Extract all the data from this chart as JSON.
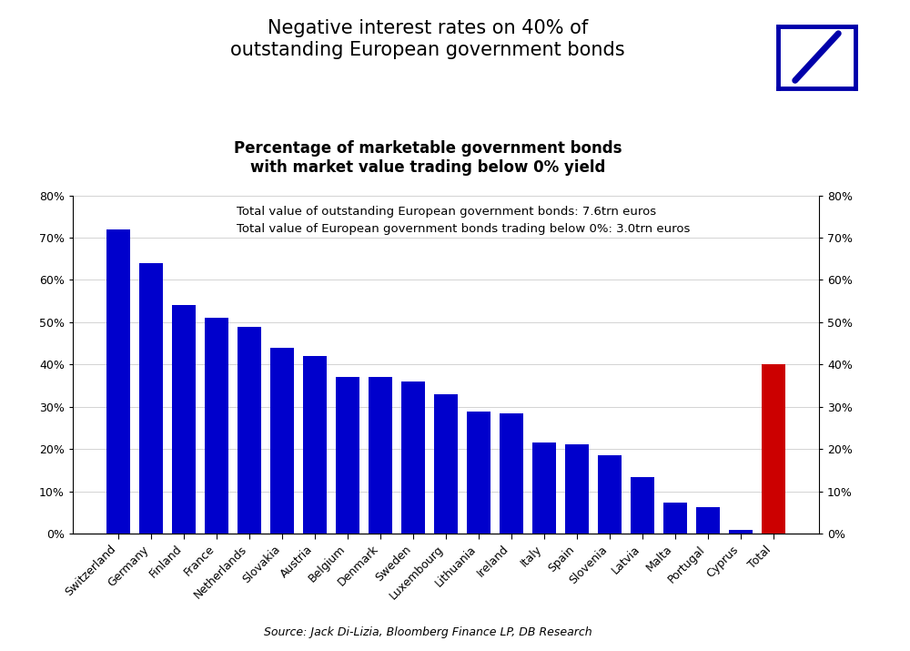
{
  "title_main": "Negative interest rates on 40% of\noutstanding European government bonds",
  "title_sub": "Percentage of marketable government bonds\nwith market value trading below 0% yield",
  "annotation_line1": "Total value of outstanding European government bonds: 7.6trn euros",
  "annotation_line2": "Total value of European government bonds trading below 0%: 3.0trn euros",
  "source_text": "Source: Jack Di-Lizia, Bloomberg Finance LP, DB Research",
  "categories": [
    "Switzerland",
    "Germany",
    "Finland",
    "France",
    "Netherlands",
    "Slovakia",
    "Austria",
    "Belgium",
    "Denmark",
    "Sweden",
    "Luxembourg",
    "Lithuania",
    "Ireland",
    "Italy",
    "Spain",
    "Slovenia",
    "Latvia",
    "Malta",
    "Portugal",
    "Cyprus",
    "Total"
  ],
  "values": [
    0.72,
    0.64,
    0.54,
    0.51,
    0.49,
    0.44,
    0.42,
    0.37,
    0.37,
    0.36,
    0.33,
    0.29,
    0.285,
    0.215,
    0.212,
    0.185,
    0.135,
    0.073,
    0.063,
    0.01,
    0.4
  ],
  "bar_color_blue": "#0000CC",
  "bar_color_red": "#CC0000",
  "logo_border_color": "#0000AA",
  "background_color": "#FFFFFF",
  "ylim": [
    0,
    0.8
  ],
  "yticks": [
    0.0,
    0.1,
    0.2,
    0.3,
    0.4,
    0.5,
    0.6,
    0.7,
    0.8
  ],
  "main_title_fontsize": 15,
  "sub_title_fontsize": 12,
  "annotation_fontsize": 9.5,
  "source_fontsize": 9,
  "tick_label_fontsize": 9
}
